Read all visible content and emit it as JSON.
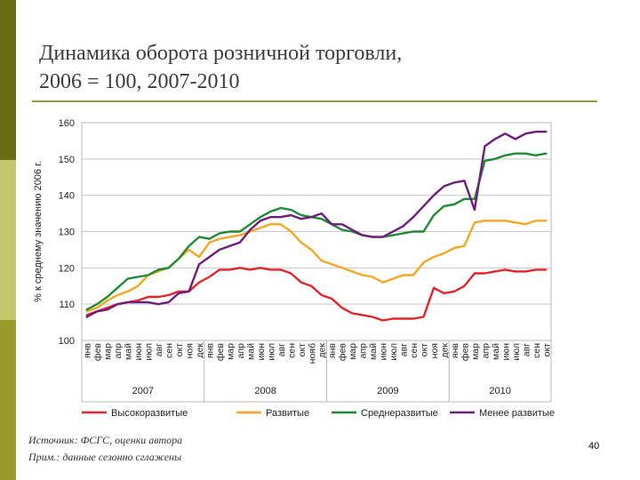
{
  "slide": {
    "title_line1": "Динамика оборота розничной торговли,",
    "title_line2": "2006 = 100, 2007-2010",
    "source": "Источник: ФСГС, оценки автора",
    "note": "Прим.: данные сезонно сглажены",
    "page_number": "40",
    "colors": {
      "bar_dark": "#6b6b12",
      "bar_light": "#c3c76a",
      "rule": "#9a9a2a"
    }
  },
  "chart_data": {
    "type": "line",
    "title": "",
    "ylabel": "% к среднему значению 2006 г.",
    "ylim": [
      100,
      160
    ],
    "yticks": [
      100,
      110,
      120,
      130,
      140,
      150,
      160
    ],
    "grid": "horizontal",
    "legend": "bottom",
    "months": [
      "янв",
      "фев",
      "мар",
      "апр",
      "май",
      "июн",
      "июл",
      "авг",
      "сен",
      "окт",
      "ноя",
      "дек"
    ],
    "years": [
      "2007",
      "2008",
      "2009",
      "2010"
    ],
    "categories": [
      "янв",
      "фев",
      "мар",
      "апр",
      "май",
      "июн",
      "июл",
      "авг",
      "сен",
      "окт",
      "ноя",
      "дек",
      "янв",
      "фев",
      "мар",
      "апр",
      "май",
      "июн",
      "июл",
      "авг",
      "сен",
      "окт",
      "нояб",
      "дек",
      "янв",
      "фев",
      "мар",
      "апр",
      "май",
      "июн",
      "июл",
      "авг",
      "сен",
      "окт",
      "ноя",
      "дек",
      "янв",
      "фев",
      "мар",
      "апр",
      "май",
      "июн",
      "июл",
      "авг",
      "сен",
      "окт"
    ],
    "series": [
      {
        "name": "Высокоразвитые",
        "color": "#e0262a",
        "values": [
          107,
          108,
          109,
          110,
          110.5,
          111,
          112,
          112,
          112.5,
          113.5,
          113.5,
          116,
          117.5,
          119.5,
          119.5,
          120,
          119.5,
          120,
          119.5,
          119.5,
          118.5,
          116,
          115,
          112.5,
          111.5,
          109,
          107.5,
          107,
          106.5,
          105.5,
          106,
          106,
          106,
          106.5,
          114.5,
          113,
          113.5,
          115,
          118.5,
          118.5,
          119,
          119.5,
          119,
          119,
          119.5,
          119.5
        ]
      },
      {
        "name": "Развитые",
        "color": "#f5a623",
        "values": [
          108,
          109,
          111,
          112.5,
          113.5,
          115,
          118,
          119,
          120,
          122.5,
          125,
          123,
          127,
          128,
          128.5,
          129,
          130,
          131,
          132,
          132,
          130,
          127,
          125,
          122,
          121,
          120,
          119,
          118,
          117.5,
          116,
          117,
          118,
          118,
          121.5,
          123,
          124,
          125.5,
          126,
          132.5,
          133,
          133,
          133,
          132.5,
          132,
          133,
          133
        ]
      },
      {
        "name": "Среднеразвитые",
        "color": "#1e8a32",
        "values": [
          108.5,
          110,
          112,
          114.5,
          117,
          117.5,
          118,
          119.5,
          120,
          122.5,
          126,
          128.5,
          128,
          129.5,
          130,
          130,
          132,
          134,
          135.5,
          136.5,
          136,
          134.5,
          134,
          133.5,
          132,
          130.5,
          130,
          129,
          128.5,
          128.5,
          129,
          129.5,
          130,
          130,
          134.5,
          137,
          137.5,
          139,
          139,
          149.5,
          150,
          151,
          151.5,
          151.5,
          151,
          151.5
        ]
      },
      {
        "name": "Менее развитые",
        "color": "#6f1d7a",
        "values": [
          106.5,
          108,
          108.5,
          110,
          110.5,
          110.5,
          110.5,
          110,
          110.5,
          113,
          113.5,
          121,
          123,
          125,
          126,
          127,
          130.5,
          133,
          134,
          134,
          134.5,
          133.5,
          134,
          135,
          132,
          132,
          130.5,
          129,
          128.5,
          128.5,
          130,
          131.5,
          134,
          137,
          140,
          142.5,
          143.5,
          144,
          136,
          153.5,
          155.5,
          157,
          155.5,
          157,
          157.5,
          157.5
        ]
      }
    ]
  }
}
